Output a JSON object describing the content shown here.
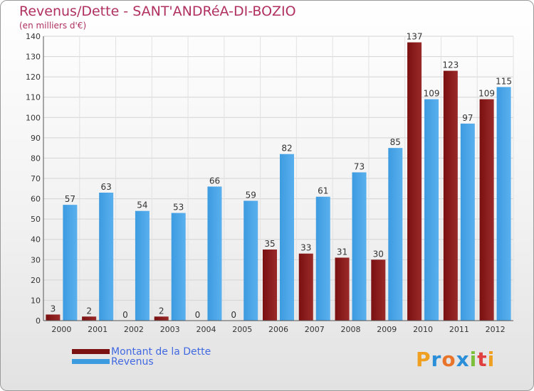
{
  "chart_data": {
    "type": "bar",
    "title": "Revenus/Dette - SANT'ANDRéA-DI-BOZIO",
    "subtitle": "(en milliers d'€)",
    "categories": [
      "2000",
      "2001",
      "2002",
      "2003",
      "2004",
      "2005",
      "2006",
      "2007",
      "2008",
      "2009",
      "2010",
      "2011",
      "2012"
    ],
    "series": [
      {
        "name": "Montant de la Dette",
        "color": "#7a1010",
        "values": [
          3,
          2,
          0,
          2,
          0,
          0,
          35,
          33,
          31,
          30,
          137,
          123,
          109
        ]
      },
      {
        "name": "Revenus",
        "color": "#3d9be0",
        "values": [
          57,
          63,
          54,
          53,
          66,
          59,
          82,
          61,
          73,
          85,
          109,
          97,
          115
        ]
      }
    ],
    "ylim": [
      0,
      140
    ],
    "yticks": [
      0,
      10,
      20,
      30,
      40,
      50,
      60,
      70,
      80,
      90,
      100,
      110,
      120,
      130,
      140
    ],
    "grid": true,
    "legend_position": "bottom-left"
  },
  "logo": {
    "letters": [
      {
        "char": "P",
        "color": "#f0a020"
      },
      {
        "char": "r",
        "color": "#2a8fd8"
      },
      {
        "char": "o",
        "color": "#e8742a"
      },
      {
        "char": "x",
        "color": "#2a8fd8"
      },
      {
        "char": "i",
        "color": "#7bbf3a"
      },
      {
        "char": "t",
        "color": "#e04040"
      },
      {
        "char": "i",
        "color": "#f0a020"
      }
    ]
  }
}
